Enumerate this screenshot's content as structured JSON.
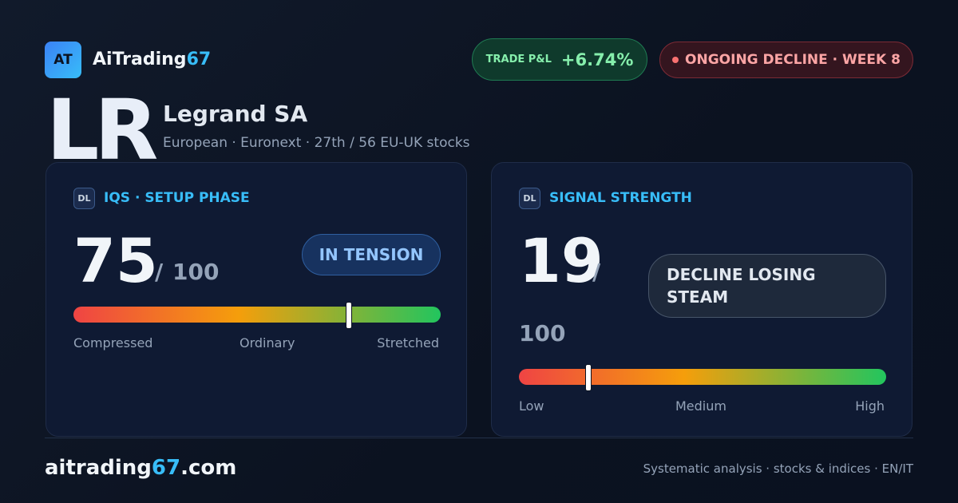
{
  "header": {
    "logo": "AT",
    "brand": "AiTrading",
    "brand_accent": "67",
    "pnl_label": "TRADE P&L",
    "pnl_value": "+6.74%",
    "status": "ONGOING DECLINE · WEEK 8"
  },
  "stock": {
    "ticker": "LR",
    "name": "Legrand SA",
    "subtitle": "European · Euronext · 27th / 56 EU-UK stocks"
  },
  "cards": [
    {
      "icon": "DL",
      "title": "IQS · SETUP PHASE",
      "score": 75,
      "separator": "/",
      "out_of": 100,
      "badge": "IN TENSION",
      "scale_labels": [
        "Compressed",
        "Ordinary",
        "Stretched"
      ]
    },
    {
      "icon": "DL",
      "title": "SIGNAL STRENGTH",
      "score": 19,
      "separator": "/",
      "out_of": 100,
      "badge": "DECLINE LOSING STEAM",
      "scale_labels": [
        "Low",
        "Medium",
        "High"
      ]
    }
  ],
  "footer": {
    "site": "aitrading",
    "site_accent": "67",
    "site_tld": ".com",
    "tagline": "Systematic analysis · stocks & indices · EN/IT"
  }
}
